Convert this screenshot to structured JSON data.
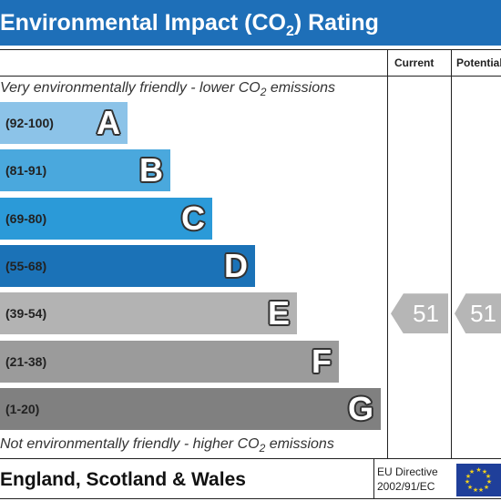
{
  "title": {
    "text_before_sub": "Environmental Impact (CO",
    "sub": "2",
    "text_after_sub": ") Rating"
  },
  "columns": {
    "current": "Current",
    "potential": "Potential"
  },
  "top_note": {
    "before": "Very environmentally friendly - lower CO",
    "sub": "2",
    "after": " emissions"
  },
  "bottom_note": {
    "before": "Not environmentally friendly - higher CO",
    "sub": "2",
    "after": " emissions"
  },
  "footer": {
    "region": "England, Scotland & Wales",
    "directive_line1": "EU Directive",
    "directive_line2": "2002/91/EC"
  },
  "chart_data": {
    "type": "bar",
    "categories": [
      "A",
      "B",
      "C",
      "D",
      "E",
      "F",
      "G"
    ],
    "ranges": [
      "(92-100)",
      "(81-91)",
      "(69-80)",
      "(55-68)",
      "(39-54)",
      "(21-38)",
      "(1-20)"
    ],
    "colors": [
      "#8cc3e8",
      "#4aa8dd",
      "#2b9ad8",
      "#1b72b7",
      "#b3b3b3",
      "#9b9b9b",
      "#808080"
    ],
    "current": {
      "value": 51,
      "band": "E"
    },
    "potential": {
      "value": 51,
      "band": "E"
    },
    "arrow_color": "#b6b6b6"
  }
}
